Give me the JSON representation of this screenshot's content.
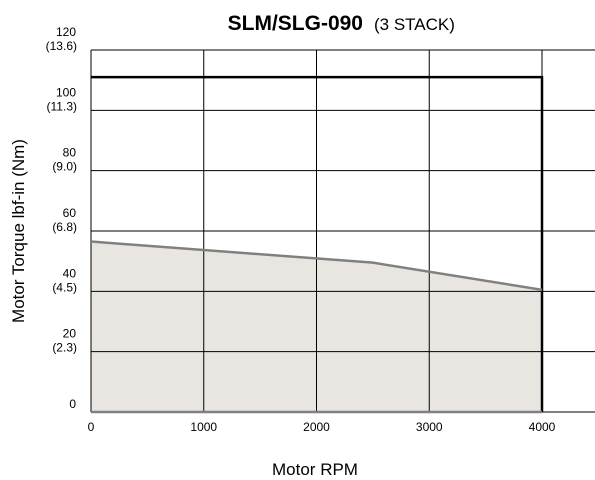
{
  "chart_data": {
    "type": "area",
    "title": "SLM/SLG-090",
    "subtitle": "(3 STACK)",
    "xlabel": "Motor RPM",
    "ylabel": "Motor Torque lbf-in (Nm)",
    "xlim": [
      0,
      4000
    ],
    "ylim": [
      0,
      120
    ],
    "grid": true,
    "x_ticks": [
      {
        "value": 0,
        "label": "0"
      },
      {
        "value": 1000,
        "label": "1000"
      },
      {
        "value": 2000,
        "label": "2000"
      },
      {
        "value": 3000,
        "label": "3000"
      },
      {
        "value": 4000,
        "label": "4000"
      }
    ],
    "y_ticks": [
      {
        "value": 0,
        "label": "0",
        "sub": ""
      },
      {
        "value": 20,
        "label": "20",
        "sub": "(2.3)"
      },
      {
        "value": 40,
        "label": "40",
        "sub": "(4.5)"
      },
      {
        "value": 60,
        "label": "60",
        "sub": "(6.8)"
      },
      {
        "value": 80,
        "label": "80",
        "sub": "(9.0)"
      },
      {
        "value": 100,
        "label": "100",
        "sub": "(11.3)"
      },
      {
        "value": 120,
        "label": "120",
        "sub": "(13.6)"
      }
    ],
    "series": [
      {
        "kind": "line",
        "color": "#000000",
        "points": [
          [
            0,
            111
          ],
          [
            4000,
            111
          ],
          [
            4000,
            0
          ]
        ]
      },
      {
        "kind": "area",
        "color": "#808080",
        "fill": "#e9e6e2",
        "points": [
          [
            0,
            56.5
          ],
          [
            2500,
            49.5
          ],
          [
            4000,
            40.5
          ]
        ]
      }
    ]
  }
}
